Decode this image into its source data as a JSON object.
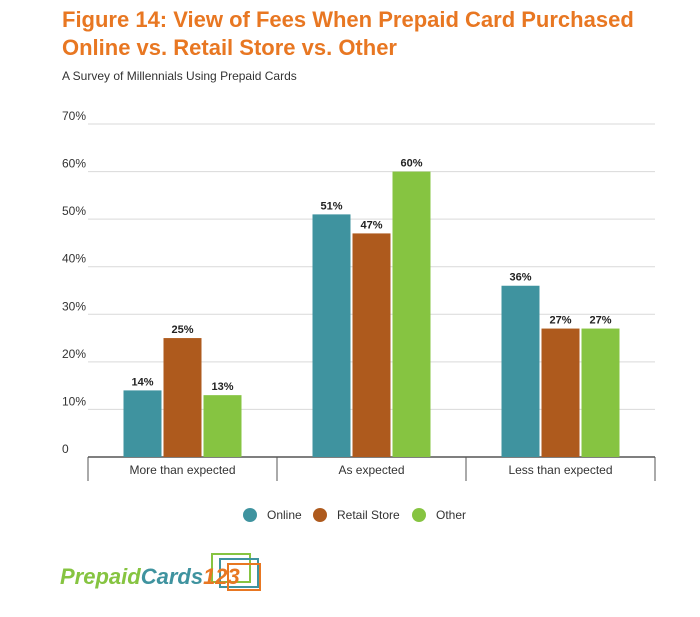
{
  "title": "Figure 14: View of Fees When Prepaid Card Purchased Online vs. Retail Store vs. Other",
  "subtitle": "A Survey of Millennials Using Prepaid Cards",
  "colors": {
    "title": "#e87722",
    "online": "#3f939f",
    "retail": "#ae5a1d",
    "other": "#86c441",
    "grid": "#d9d9d9",
    "axis": "#555555",
    "text": "#333333",
    "logo_prepaid": "#86c441",
    "logo_cards": "#3f939f",
    "logo_123": "#e87722"
  },
  "chart_data": {
    "type": "bar",
    "title": "Figure 14: View of Fees When Prepaid Card Purchased Online vs. Retail Store vs. Other",
    "subtitle": "A Survey of Millennials Using Prepaid Cards",
    "xlabel": "",
    "ylabel": "",
    "categories": [
      "More than expected",
      "As expected",
      "Less than expected"
    ],
    "series": [
      {
        "name": "Online",
        "color": "#3f939f",
        "values": [
          14,
          51,
          36
        ]
      },
      {
        "name": "Retail Store",
        "color": "#ae5a1d",
        "values": [
          25,
          47,
          27
        ]
      },
      {
        "name": "Other",
        "color": "#86c441",
        "values": [
          13,
          60,
          27
        ]
      }
    ],
    "ylim": [
      0,
      70
    ],
    "yticks": [
      0,
      10,
      20,
      30,
      40,
      50,
      60,
      70
    ],
    "ytick_labels": [
      "0",
      "10%",
      "20%",
      "30%",
      "40%",
      "50%",
      "60%",
      "70%"
    ],
    "data_labels": [
      [
        "14%",
        "51%",
        "36%"
      ],
      [
        "25%",
        "47%",
        "27%"
      ],
      [
        "13%",
        "60%",
        "27%"
      ]
    ],
    "grid": true,
    "legend_position": "bottom-center"
  },
  "legend": {
    "items": [
      {
        "label": "Online",
        "color": "#3f939f"
      },
      {
        "label": "Retail Store",
        "color": "#ae5a1d"
      },
      {
        "label": "Other",
        "color": "#86c441"
      }
    ]
  },
  "logo": {
    "part1": "Prepaid",
    "part2": "Cards",
    "part3": "123"
  }
}
